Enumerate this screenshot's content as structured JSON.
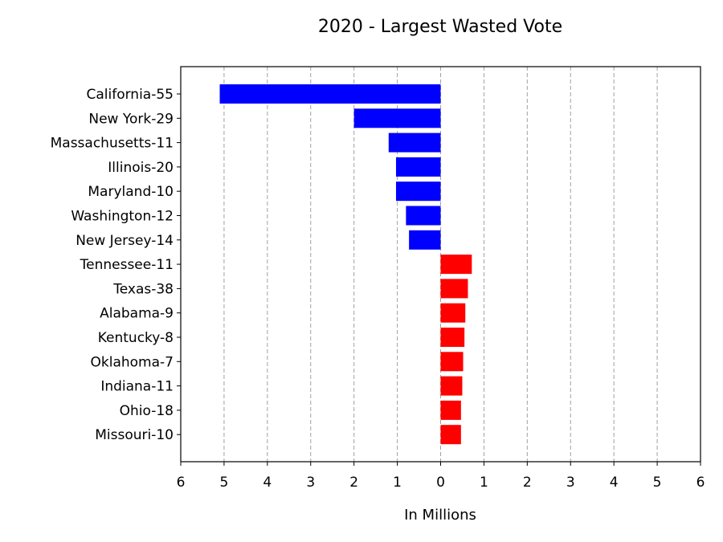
{
  "chart_data": {
    "type": "bar",
    "orientation": "horizontal",
    "title": "2020 - Largest Wasted Vote",
    "xlabel": "In Millions",
    "ylabel": "",
    "xlim": [
      -6,
      6
    ],
    "x_tick_values": [
      -6,
      -5,
      -4,
      -3,
      -2,
      -1,
      0,
      1,
      2,
      3,
      4,
      5,
      6
    ],
    "x_tick_labels": [
      "6",
      "5",
      "4",
      "3",
      "2",
      "1",
      "0",
      "1",
      "2",
      "3",
      "4",
      "5",
      "6"
    ],
    "grid": "vertical dashed",
    "categories": [
      "California-55",
      "New York-29",
      "Massachusetts-11",
      "Illinois-20",
      "Maryland-10",
      "Washington-12",
      "New Jersey-14",
      "Tennessee-11",
      "Texas-38",
      "Alabama-9",
      "Kentucky-8",
      "Oklahoma-7",
      "Indiana-11",
      "Ohio-18",
      "Missouri-10"
    ],
    "values": [
      -5.1,
      -2.0,
      -1.2,
      -1.03,
      -1.03,
      -0.8,
      -0.73,
      0.72,
      0.63,
      0.57,
      0.55,
      0.52,
      0.5,
      0.47,
      0.47
    ],
    "colors": [
      "#0000ff",
      "#0000ff",
      "#0000ff",
      "#0000ff",
      "#0000ff",
      "#0000ff",
      "#0000ff",
      "#ff0000",
      "#ff0000",
      "#ff0000",
      "#ff0000",
      "#ff0000",
      "#ff0000",
      "#ff0000",
      "#ff0000"
    ]
  }
}
